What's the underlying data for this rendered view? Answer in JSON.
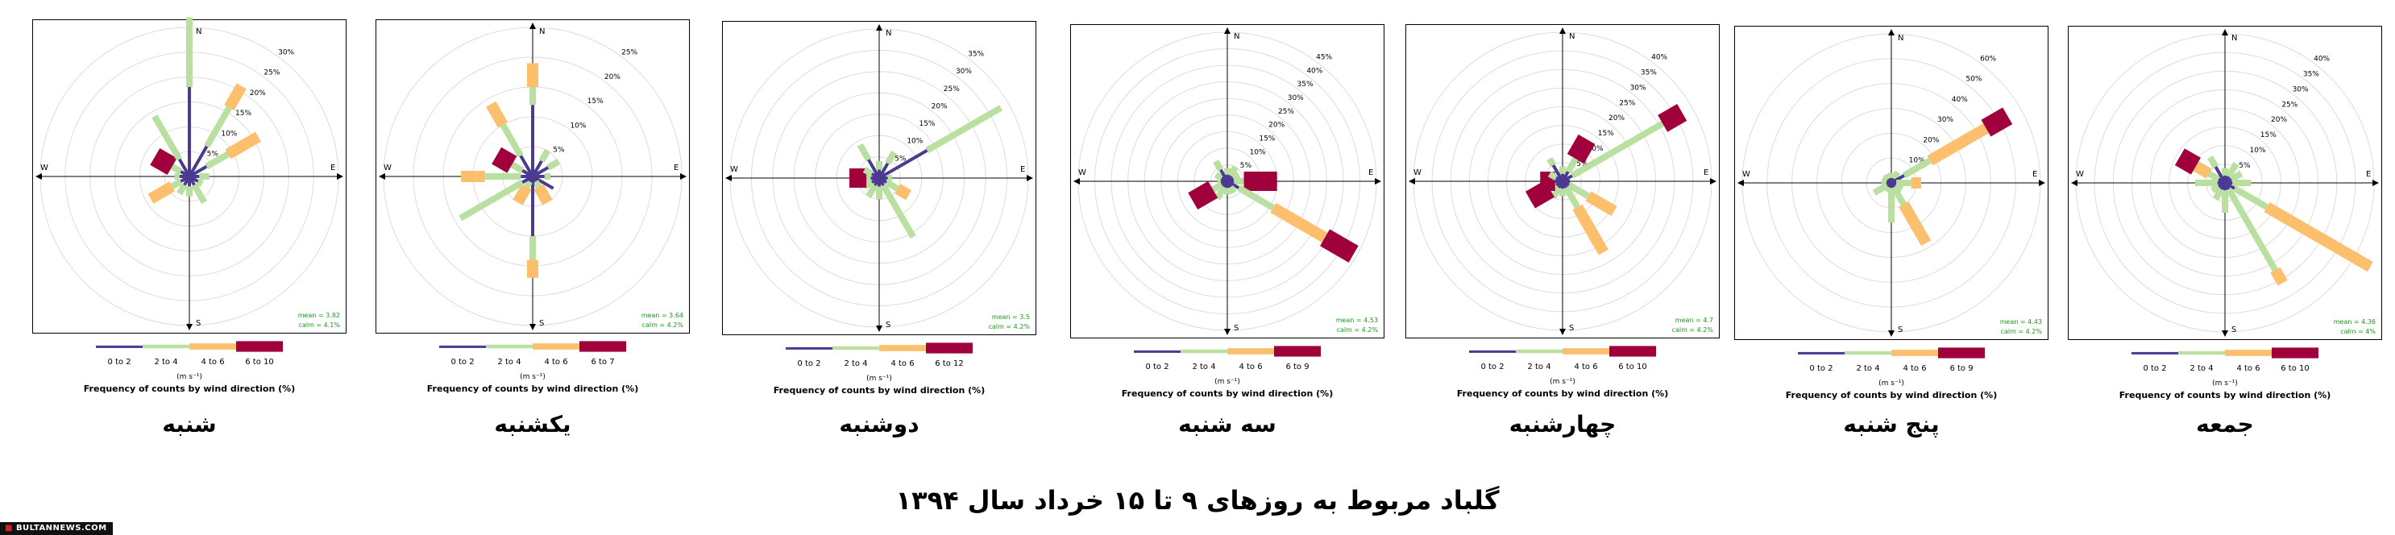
{
  "palette": {
    "c0": "#4b3a91",
    "c1": "#b9e0a0",
    "c2": "#fbbf6e",
    "c3": "#a0003c"
  },
  "chart_data": [
    {
      "type": "wind_rose",
      "day": "شنبه",
      "rings": [
        5,
        10,
        15,
        20,
        25,
        30
      ],
      "ring_labels": [
        "5%",
        "10%",
        "15%",
        "20%",
        "25%",
        "30%"
      ],
      "bins": [
        "0 to 2",
        "2 to 4",
        "4 to 6",
        "6 to 10"
      ],
      "mean": "mean = 3.82",
      "calm": "calm = 4.1%",
      "directions": [
        {
          "deg": 0,
          "values": [
            18,
            14,
            0,
            0
          ]
        },
        {
          "deg": 30,
          "values": [
            7,
            9,
            5,
            0
          ]
        },
        {
          "deg": 60,
          "values": [
            4,
            5,
            7,
            0
          ]
        },
        {
          "deg": 90,
          "values": [
            2,
            2,
            0,
            0
          ]
        },
        {
          "deg": 120,
          "values": [
            2,
            1,
            0,
            0
          ]
        },
        {
          "deg": 150,
          "values": [
            2,
            4,
            0,
            0
          ]
        },
        {
          "deg": 180,
          "values": [
            2,
            2,
            0,
            0
          ]
        },
        {
          "deg": 210,
          "values": [
            2,
            2,
            0,
            0
          ]
        },
        {
          "deg": 240,
          "values": [
            2,
            2,
            5,
            0
          ]
        },
        {
          "deg": 270,
          "values": [
            2,
            1,
            0,
            0
          ]
        },
        {
          "deg": 300,
          "values": [
            2,
            2,
            0,
            4
          ]
        },
        {
          "deg": 330,
          "values": [
            4,
            10,
            0,
            0
          ]
        }
      ]
    },
    {
      "type": "wind_rose",
      "day": "یکشنبه",
      "rings": [
        5,
        10,
        15,
        20,
        25
      ],
      "ring_labels": [
        "5%",
        "10%",
        "15%",
        "20%",
        "25%"
      ],
      "bins": [
        "0 to 2",
        "2 to 4",
        "4 to 6",
        "6 to 7"
      ],
      "mean": "mean = 3.64",
      "calm": "calm = 4.2%",
      "directions": [
        {
          "deg": 0,
          "values": [
            12,
            3,
            4,
            0
          ]
        },
        {
          "deg": 30,
          "values": [
            3,
            2,
            0,
            0
          ]
        },
        {
          "deg": 60,
          "values": [
            3,
            2,
            0,
            0
          ]
        },
        {
          "deg": 90,
          "values": [
            2,
            1,
            0,
            0
          ]
        },
        {
          "deg": 120,
          "values": [
            4,
            0,
            0,
            0
          ]
        },
        {
          "deg": 150,
          "values": [
            1,
            1,
            3,
            0
          ]
        },
        {
          "deg": 180,
          "values": [
            10,
            4,
            3,
            0
          ]
        },
        {
          "deg": 210,
          "values": [
            1,
            1,
            3,
            0
          ]
        },
        {
          "deg": 240,
          "values": [
            2,
            12,
            0,
            0
          ]
        },
        {
          "deg": 270,
          "values": [
            2,
            6,
            4,
            0
          ]
        },
        {
          "deg": 300,
          "values": [
            2,
            2,
            0,
            3
          ]
        },
        {
          "deg": 330,
          "values": [
            4,
            6,
            4,
            0
          ]
        }
      ]
    },
    {
      "type": "wind_rose",
      "day": "دوشنبه",
      "rings": [
        5,
        10,
        15,
        20,
        25,
        30,
        35
      ],
      "ring_labels": [
        "5%",
        "10%",
        "15%",
        "20%",
        "25%",
        "30%",
        "35%"
      ],
      "bins": [
        "0 to 2",
        "2 to 4",
        "4 to 6",
        "6 to 12"
      ],
      "mean": "mean = 3.5",
      "calm": "calm = 4.2%",
      "directions": [
        {
          "deg": 0,
          "values": [
            2,
            2,
            0,
            0
          ]
        },
        {
          "deg": 30,
          "values": [
            4,
            3,
            0,
            0
          ]
        },
        {
          "deg": 60,
          "values": [
            13,
            20,
            0,
            0
          ]
        },
        {
          "deg": 90,
          "values": [
            2,
            1,
            0,
            0
          ]
        },
        {
          "deg": 120,
          "values": [
            2,
            3,
            3,
            0
          ]
        },
        {
          "deg": 150,
          "values": [
            2,
            14,
            0,
            0
          ]
        },
        {
          "deg": 180,
          "values": [
            2,
            3,
            0,
            0
          ]
        },
        {
          "deg": 210,
          "values": [
            2,
            3,
            0,
            0
          ]
        },
        {
          "deg": 240,
          "values": [
            2,
            2,
            0,
            0
          ]
        },
        {
          "deg": 270,
          "values": [
            2,
            1,
            0,
            4
          ]
        },
        {
          "deg": 300,
          "values": [
            2,
            2,
            0,
            0
          ]
        },
        {
          "deg": 330,
          "values": [
            5,
            4,
            0,
            0
          ]
        }
      ]
    },
    {
      "type": "wind_rose",
      "day": "سه شنبه",
      "rings": [
        5,
        10,
        15,
        20,
        25,
        30,
        35,
        40,
        45
      ],
      "ring_labels": [
        "5%",
        "10%",
        "15%",
        "20%",
        "25%",
        "30%",
        "35%",
        "40%",
        "45%"
      ],
      "bins": [
        "0 to 2",
        "2 to 4",
        "4 to 6",
        "6 to 9"
      ],
      "mean": "mean = 4.53",
      "calm": "calm = 4.2%",
      "directions": [
        {
          "deg": 0,
          "values": [
            2,
            2,
            0,
            0
          ]
        },
        {
          "deg": 30,
          "values": [
            2,
            3,
            0,
            0
          ]
        },
        {
          "deg": 60,
          "values": [
            2,
            2,
            0,
            0
          ]
        },
        {
          "deg": 90,
          "values": [
            2,
            3,
            0,
            10
          ]
        },
        {
          "deg": 120,
          "values": [
            4,
            12,
            18,
            10
          ]
        },
        {
          "deg": 150,
          "values": [
            2,
            2,
            0,
            0
          ]
        },
        {
          "deg": 180,
          "values": [
            2,
            2,
            0,
            0
          ]
        },
        {
          "deg": 210,
          "values": [
            2,
            4,
            0,
            0
          ]
        },
        {
          "deg": 240,
          "values": [
            2,
            3,
            0,
            7
          ]
        },
        {
          "deg": 270,
          "values": [
            2,
            1,
            0,
            0
          ]
        },
        {
          "deg": 300,
          "values": [
            2,
            2,
            0,
            0
          ]
        },
        {
          "deg": 330,
          "values": [
            4,
            3,
            0,
            0
          ]
        }
      ]
    },
    {
      "type": "wind_rose",
      "day": "چهارشنبه",
      "rings": [
        5,
        10,
        15,
        20,
        25,
        30,
        35,
        40
      ],
      "ring_labels": [
        "5%",
        "10%",
        "15%",
        "20%",
        "25%",
        "30%",
        "35%",
        "40%"
      ],
      "bins": [
        "0 to 2",
        "2 to 4",
        "4 to 6",
        "6 to 10"
      ],
      "mean": "mean = 4.7",
      "calm": "calm = 4.2%",
      "directions": [
        {
          "deg": 0,
          "values": [
            2,
            2,
            0,
            0
          ]
        },
        {
          "deg": 30,
          "values": [
            3,
            4,
            0,
            6
          ]
        },
        {
          "deg": 60,
          "values": [
            3,
            28,
            0,
            6
          ]
        },
        {
          "deg": 90,
          "values": [
            2,
            0,
            0,
            0
          ]
        },
        {
          "deg": 120,
          "values": [
            2,
            6,
            8,
            0
          ]
        },
        {
          "deg": 150,
          "values": [
            2,
            6,
            14,
            0
          ]
        },
        {
          "deg": 180,
          "values": [
            2,
            2,
            0,
            0
          ]
        },
        {
          "deg": 210,
          "values": [
            2,
            3,
            0,
            0
          ]
        },
        {
          "deg": 240,
          "values": [
            2,
            2,
            0,
            6
          ]
        },
        {
          "deg": 270,
          "values": [
            2,
            0,
            0,
            4
          ]
        },
        {
          "deg": 300,
          "values": [
            2,
            2,
            0,
            0
          ]
        },
        {
          "deg": 330,
          "values": [
            5,
            2,
            0,
            0
          ]
        }
      ]
    },
    {
      "type": "wind_rose",
      "day": "پنج شنبه",
      "rings": [
        10,
        20,
        30,
        40,
        50,
        60
      ],
      "ring_labels": [
        "10%",
        "20%",
        "30%",
        "40%",
        "50%",
        "60%"
      ],
      "bins": [
        "0 to 2",
        "2 to 4",
        "4 to 6",
        "6 to 9"
      ],
      "mean": "mean = 4.43",
      "calm": "calm = 4.2%",
      "directions": [
        {
          "deg": 0,
          "values": [
            2,
            2,
            0,
            0
          ]
        },
        {
          "deg": 30,
          "values": [
            2,
            3,
            0,
            0
          ]
        },
        {
          "deg": 60,
          "values": [
            6,
            12,
            26,
            10
          ]
        },
        {
          "deg": 90,
          "values": [
            2,
            6,
            4,
            0
          ]
        },
        {
          "deg": 120,
          "values": [
            2,
            3,
            0,
            0
          ]
        },
        {
          "deg": 150,
          "values": [
            2,
            8,
            18,
            0
          ]
        },
        {
          "deg": 180,
          "values": [
            2,
            14,
            0,
            0
          ]
        },
        {
          "deg": 210,
          "values": [
            2,
            2,
            0,
            0
          ]
        },
        {
          "deg": 240,
          "values": [
            2,
            6,
            0,
            0
          ]
        },
        {
          "deg": 270,
          "values": [
            2,
            2,
            0,
            0
          ]
        },
        {
          "deg": 300,
          "values": [
            2,
            2,
            0,
            0
          ]
        },
        {
          "deg": 330,
          "values": [
            2,
            2,
            0,
            0
          ]
        }
      ]
    },
    {
      "type": "wind_rose",
      "day": "جمعه",
      "rings": [
        5,
        10,
        15,
        20,
        25,
        30,
        35,
        40
      ],
      "ring_labels": [
        "5%",
        "10%",
        "15%",
        "20%",
        "25%",
        "30%",
        "35%",
        "40%"
      ],
      "bins": [
        "0 to 2",
        "2 to 4",
        "4 to 6",
        "6 to 10"
      ],
      "mean": "mean = 4.36",
      "calm": "calm = 4%",
      "directions": [
        {
          "deg": 0,
          "values": [
            2,
            2,
            0,
            0
          ]
        },
        {
          "deg": 30,
          "values": [
            2,
            4,
            0,
            0
          ]
        },
        {
          "deg": 60,
          "values": [
            2,
            3,
            0,
            0
          ]
        },
        {
          "deg": 90,
          "values": [
            2,
            5,
            0,
            0
          ]
        },
        {
          "deg": 120,
          "values": [
            3,
            10,
            32,
            0
          ]
        },
        {
          "deg": 150,
          "values": [
            2,
            25,
            4,
            0
          ]
        },
        {
          "deg": 180,
          "values": [
            2,
            6,
            0,
            0
          ]
        },
        {
          "deg": 210,
          "values": [
            2,
            3,
            0,
            0
          ]
        },
        {
          "deg": 240,
          "values": [
            2,
            2,
            0,
            0
          ]
        },
        {
          "deg": 270,
          "values": [
            2,
            6,
            0,
            0
          ]
        },
        {
          "deg": 300,
          "values": [
            2,
            3,
            4,
            5
          ]
        },
        {
          "deg": 330,
          "values": [
            5,
            3,
            0,
            0
          ]
        }
      ]
    }
  ],
  "common": {
    "north": "N",
    "south": "S",
    "east": "E",
    "west": "W",
    "unit": "(m s⁻¹)",
    "caption": "Frequency of counts by wind direction (%)"
  },
  "main_title": "گلباد مربوط به روزهای ۹ تا ۱۵ خرداد سال ۱۳۹۴",
  "watermark": "BULTANNEWS.COM"
}
